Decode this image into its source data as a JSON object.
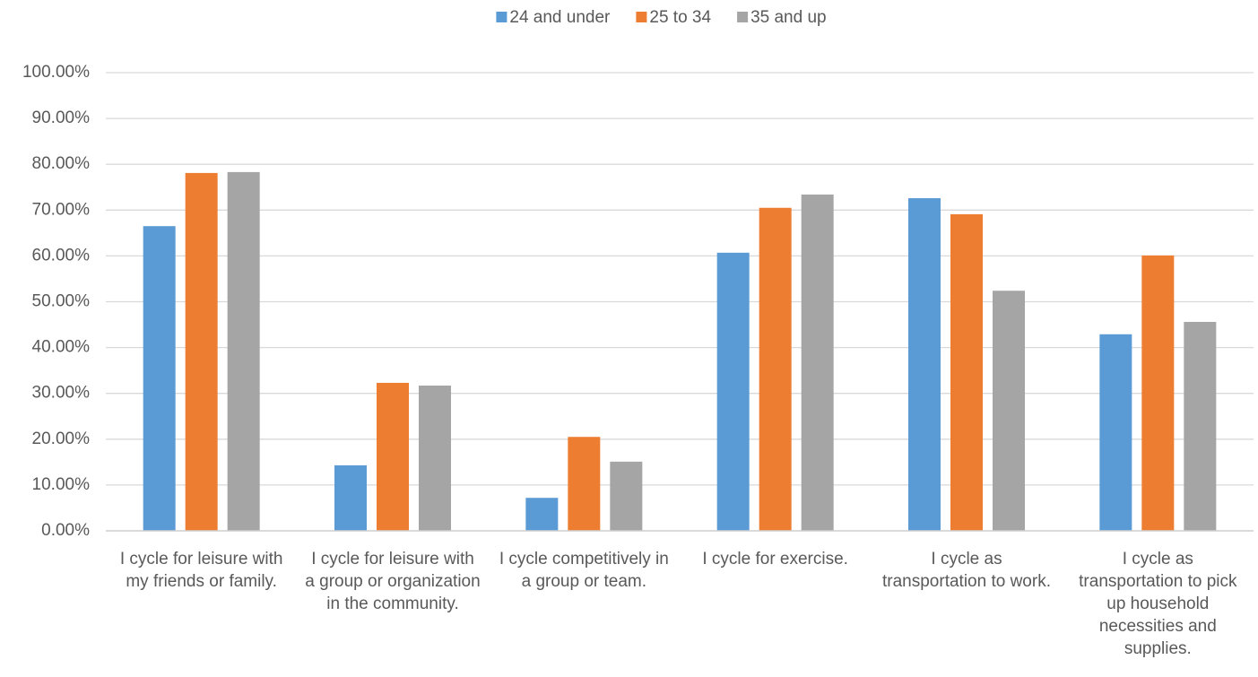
{
  "chart_data": {
    "type": "bar",
    "categories": [
      "I cycle for leisure with my friends or family.",
      "I cycle for leisure with a group or organization in the community.",
      "I cycle competitively in a group or team.",
      "I cycle for exercise.",
      "I cycle as transportation to work.",
      "I cycle as transportation to pick up household necessities and supplies."
    ],
    "series": [
      {
        "name": "24 and under",
        "color": "#5b9bd5",
        "values": [
          66.5,
          14.3,
          7.2,
          60.7,
          72.6,
          42.9
        ]
      },
      {
        "name": "25 to 34",
        "color": "#ed7d31",
        "values": [
          78.1,
          32.3,
          20.5,
          70.5,
          69.1,
          60.1
        ]
      },
      {
        "name": "35 and up",
        "color": "#a5a5a5",
        "values": [
          78.3,
          31.7,
          15.1,
          73.4,
          52.4,
          45.6
        ]
      }
    ],
    "ylim": [
      0,
      100
    ],
    "yticks": [
      {
        "value": 0,
        "label": "0.00%"
      },
      {
        "value": 10,
        "label": "10.00%"
      },
      {
        "value": 20,
        "label": "20.00%"
      },
      {
        "value": 30,
        "label": "30.00%"
      },
      {
        "value": 40,
        "label": "40.00%"
      },
      {
        "value": 50,
        "label": "50.00%"
      },
      {
        "value": 60,
        "label": "60.00%"
      },
      {
        "value": 70,
        "label": "70.00%"
      },
      {
        "value": 80,
        "label": "80.00%"
      },
      {
        "value": 90,
        "label": "90.00%"
      },
      {
        "value": 100,
        "label": "100.00%"
      }
    ],
    "grid": true,
    "legend": "top"
  }
}
